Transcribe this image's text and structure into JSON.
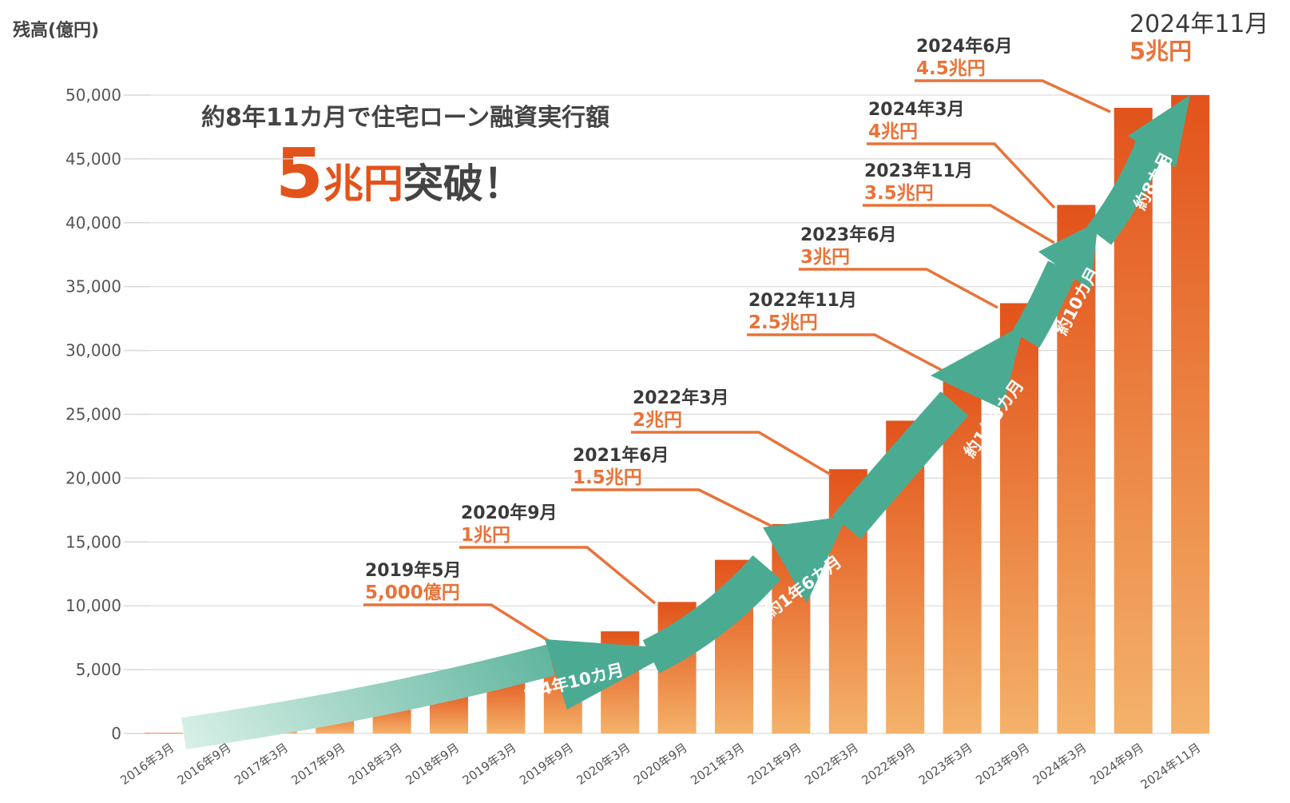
{
  "chart_data": {
    "type": "bar",
    "ylabel": "残高(億円)",
    "ylim": [
      0,
      50000
    ],
    "yticks": [
      "0",
      "5,000",
      "10,000",
      "15,000",
      "20,000",
      "25,000",
      "30,000",
      "35,000",
      "40,000",
      "45,000",
      "50,000"
    ],
    "grid": true,
    "categories": [
      "2016年3月",
      "2016年9月",
      "2017年3月",
      "2017年9月",
      "2018年3月",
      "2018年9月",
      "2019年3月",
      "2019年9月",
      "2020年3月",
      "2020年9月",
      "2021年3月",
      "2021年9月",
      "2022年3月",
      "2022年9月",
      "2023年3月",
      "2023年9月",
      "2024年3月",
      "2024年9月",
      "2024年11月"
    ],
    "values": [
      50,
      650,
      1400,
      2200,
      2900,
      3600,
      4800,
      6200,
      8000,
      10300,
      13600,
      16400,
      20700,
      24500,
      28600,
      33700,
      41400,
      49000,
      50000
    ],
    "headline": "約8年11カ月で住宅ローン融資実行額",
    "big_number": "5",
    "big_unit": "兆円",
    "big_rest": "突破！",
    "milestones": [
      {
        "date": "2019年5月",
        "amount": "5,000億円"
      },
      {
        "date": "2020年9月",
        "amount": "1兆円"
      },
      {
        "date": "2021年6月",
        "amount": "1.5兆円"
      },
      {
        "date": "2022年3月",
        "amount": "2兆円"
      },
      {
        "date": "2022年11月",
        "amount": "2.5兆円"
      },
      {
        "date": "2023年6月",
        "amount": "3兆円"
      },
      {
        "date": "2023年11月",
        "amount": "3.5兆円"
      },
      {
        "date": "2024年3月",
        "amount": "4兆円"
      },
      {
        "date": "2024年6月",
        "amount": "4.5兆円"
      },
      {
        "date": "2024年11月",
        "amount": "5兆円"
      }
    ],
    "periods": [
      "約4年10カ月",
      "約1年6カ月",
      "約1年3カ月",
      "約10カ月",
      "約8カ月"
    ],
    "colors": {
      "bar_top": "#e2531b",
      "bar_bottom": "#f4b26a",
      "arrow_dark": "#4bab92",
      "arrow_light": "#d7efe6",
      "accent": "#e8733a",
      "grid": "#d9d9d9"
    }
  }
}
